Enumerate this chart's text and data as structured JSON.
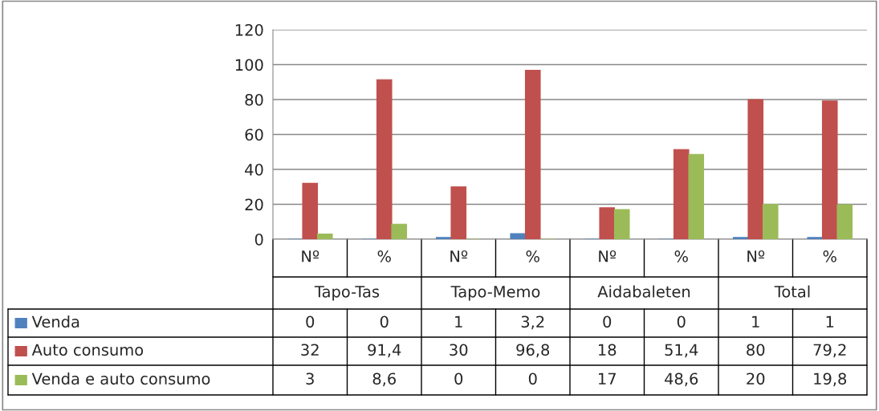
{
  "chart_data": {
    "type": "bar",
    "categories": [
      "Nº",
      "%",
      "Nº",
      "%",
      "Nº",
      "%",
      "Nº",
      "%"
    ],
    "series": [
      {
        "name": "Venda",
        "color": "#4f81bd",
        "values": [
          0,
          0,
          1,
          3.2,
          0,
          0,
          1,
          1
        ],
        "value_labels": [
          "0",
          "0",
          "1",
          "3,2",
          "0",
          "0",
          "1",
          "1"
        ]
      },
      {
        "name": "Auto consumo",
        "color": "#c0504d",
        "values": [
          32,
          91.4,
          30,
          96.8,
          18,
          51.4,
          80,
          79.2
        ],
        "value_labels": [
          "32",
          "91,4",
          "30",
          "96,8",
          "18",
          "51,4",
          "80",
          "79,2"
        ]
      },
      {
        "name": "Venda e auto consumo",
        "color": "#9bbb59",
        "values": [
          3,
          8.6,
          0,
          0,
          17,
          48.6,
          20,
          19.8
        ],
        "value_labels": [
          "3",
          "8,6",
          "0",
          "0",
          "17",
          "48,6",
          "20",
          "19,8"
        ]
      }
    ],
    "annotations": [
      "Tapo-Tas",
      "Tapo-Memo",
      "Aidabaleten",
      "Total"
    ],
    "ylim": [
      0,
      120
    ],
    "yticks": [
      0,
      20,
      40,
      60,
      80,
      100,
      120
    ],
    "grid": "y",
    "legend": "bottom left"
  }
}
